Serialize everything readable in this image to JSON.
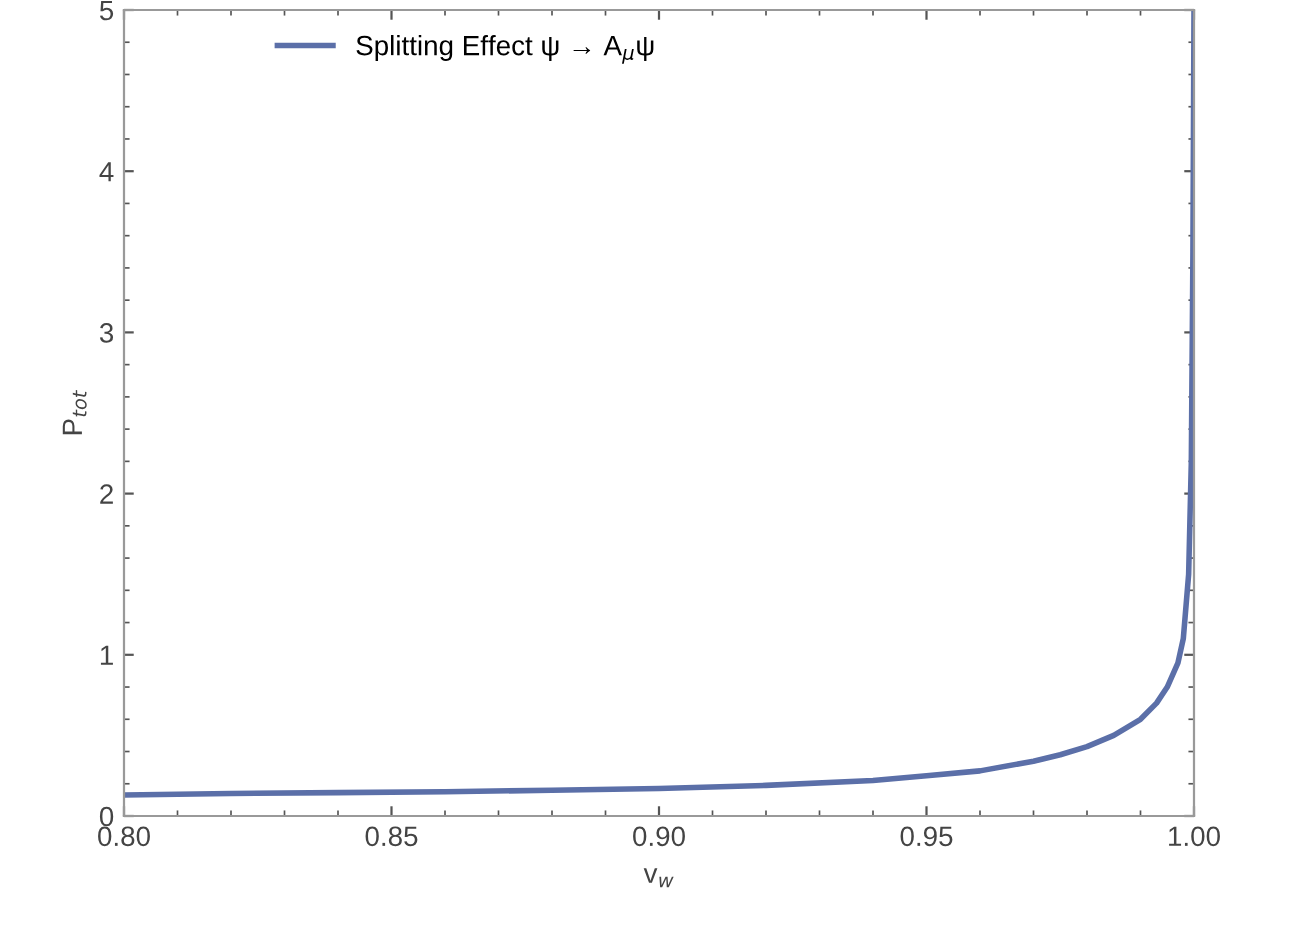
{
  "chart_data": {
    "type": "line",
    "xlabel": "v$_{w}$",
    "ylabel": "P$_{tot}$",
    "x": [
      0.8,
      0.82,
      0.84,
      0.86,
      0.88,
      0.9,
      0.92,
      0.94,
      0.95,
      0.96,
      0.97,
      0.975,
      0.98,
      0.985,
      0.99,
      0.993,
      0.995,
      0.997,
      0.998,
      0.999,
      0.9995,
      0.9998,
      1.0
    ],
    "series": [
      {
        "name": "Splitting Effect ψ → A$_{μ}$ψ",
        "color": "#5b6fa8",
        "values": [
          0.13,
          0.14,
          0.145,
          0.15,
          0.16,
          0.17,
          0.19,
          0.22,
          0.25,
          0.28,
          0.34,
          0.38,
          0.43,
          0.5,
          0.6,
          0.7,
          0.8,
          0.95,
          1.1,
          1.5,
          2.2,
          3.5,
          5
        ]
      }
    ],
    "xlim": [
      0.8,
      1.0
    ],
    "ylim": [
      0,
      5
    ],
    "xticks": [
      {
        "value": 0.8,
        "label": "0.80"
      },
      {
        "value": 0.85,
        "label": "0.85"
      },
      {
        "value": 0.9,
        "label": "0.90"
      },
      {
        "value": 0.95,
        "label": "0.95"
      },
      {
        "value": 1.0,
        "label": "1.00"
      }
    ],
    "yticks": [
      0,
      1,
      2,
      3,
      4,
      5
    ],
    "legend": "top left",
    "grid": false,
    "marker": "none",
    "line_style": "solid"
  }
}
